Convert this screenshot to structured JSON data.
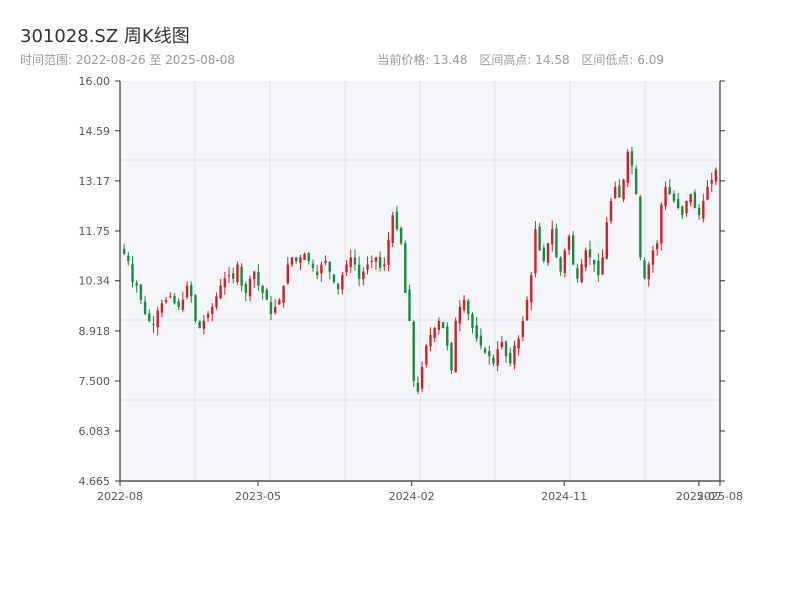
{
  "header": {
    "title": "301028.SZ 周K线图",
    "range_text": "时间范围: 2022-08-26 至 2025-08-08",
    "current_price": "当前价格: 13.48",
    "range_high": "区间高点: 14.58",
    "range_low": "区间低点: 6.09"
  },
  "colors": {
    "up": "#d0212a",
    "down": "#1a8a3c",
    "plot_bg": "#f5f6f9",
    "grid": "#dfe3ea",
    "axis": "#333333"
  },
  "chart_data": {
    "type": "candlestick",
    "title": "301028.SZ 周K线图",
    "ylim": [
      4.665,
      16.0
    ],
    "y_ticks": [
      "16.00",
      "14.59",
      "13.17",
      "11.75",
      "10.34",
      "8.918",
      "7.500",
      "6.083",
      "4.665"
    ],
    "x_ticks": [
      {
        "label": "2022-08",
        "date": "2022-08-26"
      },
      {
        "label": "2023-05",
        "date": "2023-05-01"
      },
      {
        "label": "2024-02",
        "date": "2024-02-01"
      },
      {
        "label": "2024-11",
        "date": "2024-11-01"
      },
      {
        "label": "2025-07",
        "date": "2025-07-01"
      },
      {
        "label": "2025-08",
        "date": "2025-08-08"
      }
    ],
    "start_date": "2022-08-26",
    "end_date": "2025-08-08",
    "high": 14.58,
    "low": 6.09,
    "last_close": 13.48,
    "weekly_close_approx": [
      11.1,
      10.9,
      10.3,
      10.2,
      9.8,
      9.4,
      9.2,
      9.1,
      9.5,
      9.7,
      9.8,
      9.9,
      9.7,
      9.6,
      9.8,
      10.2,
      9.9,
      9.2,
      9.0,
      9.2,
      9.4,
      9.6,
      9.9,
      10.2,
      10.4,
      10.5,
      10.4,
      10.8,
      10.2,
      10.0,
      10.4,
      10.6,
      10.2,
      10.0,
      9.8,
      9.4,
      9.6,
      9.8,
      10.2,
      10.8,
      11.0,
      10.9,
      11.0,
      11.1,
      10.9,
      10.7,
      10.5,
      10.8,
      10.9,
      10.6,
      10.3,
      10.1,
      10.5,
      10.8,
      11.0,
      10.8,
      10.4,
      10.6,
      10.8,
      10.9,
      11.0,
      10.7,
      10.8,
      11.5,
      12.2,
      11.8,
      11.4,
      10.0,
      9.2,
      7.5,
      7.2,
      7.9,
      8.5,
      8.8,
      9.0,
      9.2,
      9.0,
      8.5,
      7.8,
      9.2,
      9.6,
      9.8,
      9.4,
      9.0,
      8.7,
      8.5,
      8.3,
      8.2,
      8.0,
      8.4,
      8.6,
      8.2,
      8.0,
      8.5,
      8.7,
      9.2,
      9.8,
      10.5,
      11.8,
      11.2,
      10.9,
      11.4,
      11.8,
      11.0,
      10.6,
      11.2,
      11.6,
      10.8,
      10.4,
      10.8,
      11.2,
      11.0,
      10.8,
      10.5,
      11.0,
      12.0,
      12.6,
      13.0,
      12.7,
      13.2,
      14.0,
      13.6,
      12.8,
      11.0,
      10.4,
      10.8,
      11.2,
      11.4,
      12.5,
      13.0,
      12.8,
      12.6,
      12.4,
      12.2,
      12.6,
      12.8,
      12.4,
      12.2,
      12.6,
      13.0,
      13.2,
      13.48
    ]
  }
}
